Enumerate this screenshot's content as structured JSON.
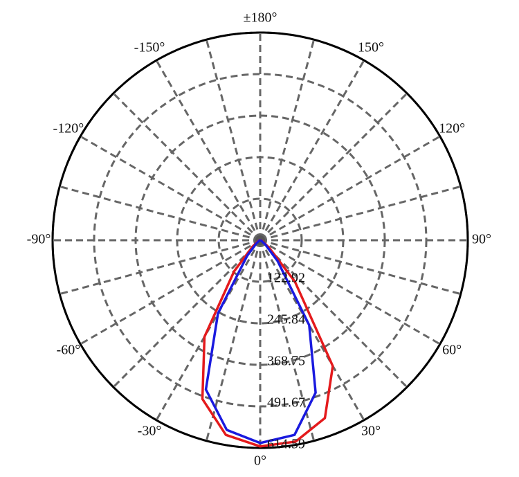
{
  "chart_data": {
    "type": "polar",
    "x": [
      -90,
      -80,
      -70,
      -60,
      -50,
      -40,
      -30,
      -20,
      -10,
      0,
      10,
      20,
      30,
      40,
      50,
      60,
      70,
      80,
      90
    ],
    "series": [
      {
        "color": "#e41a1c",
        "values": [
          0,
          2,
          5,
          10,
          30,
          120,
          330,
          500,
          585,
          610,
          605,
          560,
          430,
          160,
          35,
          10,
          5,
          2,
          0
        ]
      },
      {
        "color": "#1a1adf",
        "values": [
          0,
          0,
          2,
          5,
          15,
          60,
          250,
          470,
          570,
          600,
          585,
          480,
          290,
          80,
          20,
          5,
          2,
          0,
          0
        ]
      }
    ],
    "rlim": [
      0,
      614.59
    ],
    "rticks": [
      122.92,
      245.84,
      368.75,
      491.67,
      614.59
    ],
    "thetaticks": [
      {
        "value": 0,
        "label": "0°"
      },
      {
        "value": 30,
        "label": "30°"
      },
      {
        "value": 60,
        "label": "60°"
      },
      {
        "value": 90,
        "label": "90°"
      },
      {
        "value": 120,
        "label": "120°"
      },
      {
        "value": 150,
        "label": "150°"
      },
      {
        "value": 180,
        "label": "±180°"
      },
      {
        "value": -150,
        "label": "-150°"
      },
      {
        "value": -120,
        "label": "-120°"
      },
      {
        "value": -90,
        "label": "-90°"
      },
      {
        "value": -60,
        "label": "-60°"
      },
      {
        "value": -30,
        "label": "-30°"
      }
    ],
    "grid": true
  }
}
